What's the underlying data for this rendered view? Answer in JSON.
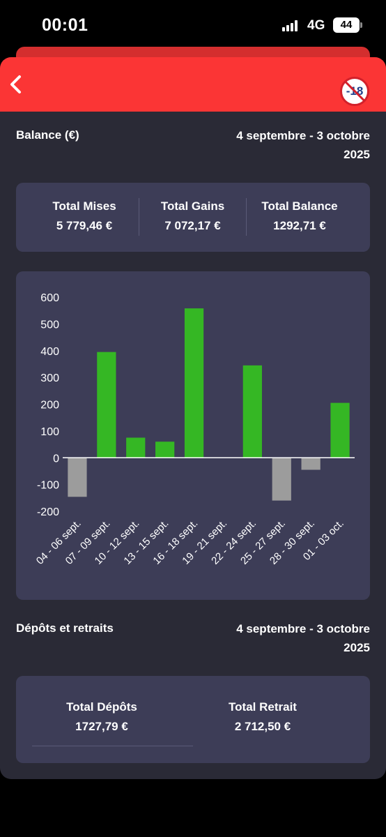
{
  "status": {
    "time": "00:01",
    "network": "4G",
    "battery": "44"
  },
  "header": {
    "back_icon": "chevron-left-icon",
    "badge_text": "-18"
  },
  "balance": {
    "title": "Balance (€)",
    "date_line1": "4 septembre - 3 octobre",
    "date_line2": "2025",
    "stats": [
      {
        "label": "Total Mises",
        "value": "5 779,46 €"
      },
      {
        "label": "Total Gains",
        "value": "7 072,17 €"
      },
      {
        "label": "Total Balance",
        "value": "1292,71 €"
      }
    ]
  },
  "chart_data": {
    "type": "bar",
    "title": "",
    "xlabel": "",
    "ylabel": "",
    "categories": [
      "04 - 06 sept.",
      "07 - 09 sept.",
      "10 - 12 sept.",
      "13 - 15 sept.",
      "16 - 18 sept.",
      "19 - 21 sept.",
      "22 - 24 sept.",
      "25 - 27 sept.",
      "28 - 30 sept.",
      "01 - 03 oct."
    ],
    "values": [
      -146,
      395,
      75,
      60,
      558,
      0,
      345,
      -160,
      -45,
      205
    ],
    "yticks": [
      "600",
      "500",
      "400",
      "300",
      "200",
      "100",
      "0",
      "-100",
      "-200"
    ],
    "ylim": [
      -200,
      600
    ],
    "colors": {
      "positive": "#35b724",
      "negative": "#9c9c9c",
      "axis": "#ffffff"
    },
    "grid": false
  },
  "deposits": {
    "title": "Dépôts et retraits",
    "date_line1": "4 septembre - 3 octobre",
    "date_line2": "2025",
    "stats": [
      {
        "label": "Total Dépôts",
        "value": "1727,79 €"
      },
      {
        "label": "Total Retrait",
        "value": "2 712,50 €"
      }
    ]
  }
}
